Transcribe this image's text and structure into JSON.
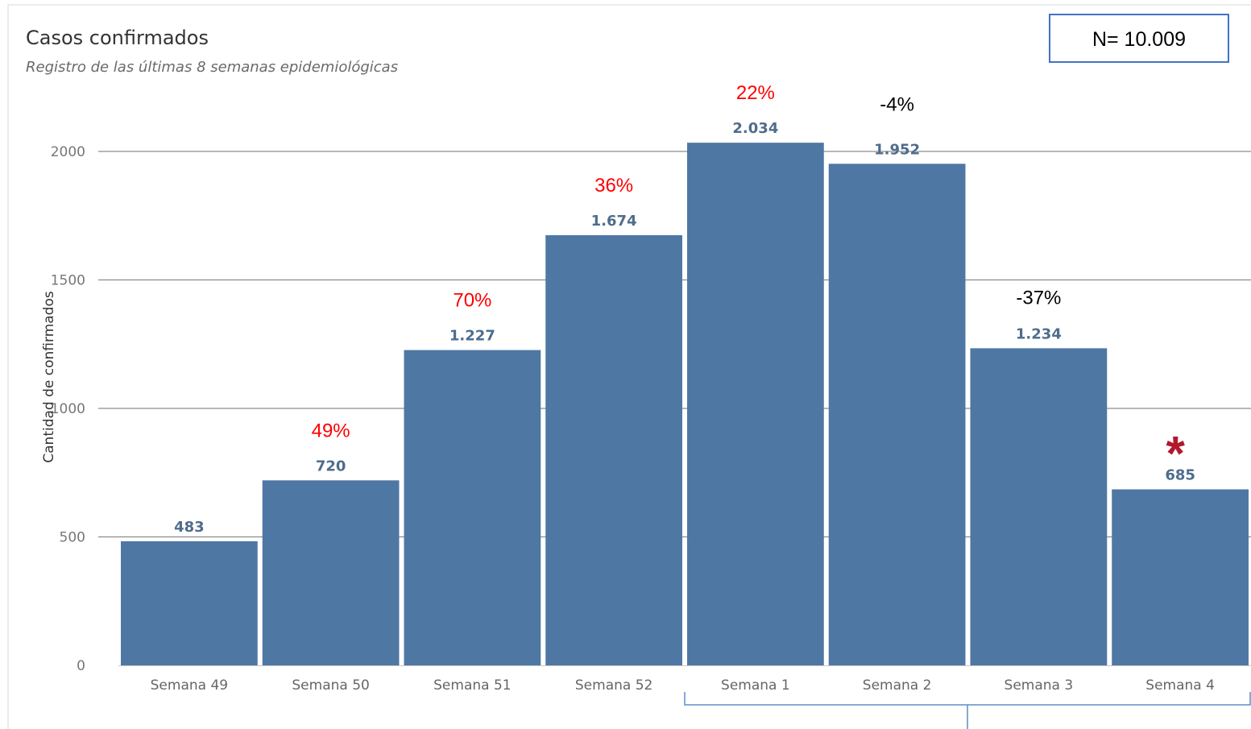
{
  "chart_data": {
    "type": "bar",
    "title": "Casos confirmados",
    "subtitle": "Registro de las últimas 8 semanas epidemiológicas",
    "ylabel": "Cantidad de confirmados",
    "xlabel": "",
    "ylim": [
      0,
      2000
    ],
    "yticks": [
      0,
      500,
      1000,
      1500,
      2000
    ],
    "grid": true,
    "bar_color": "#4e77a4",
    "categories": [
      "Semana 49",
      "Semana 50",
      "Semana 51",
      "Semana 52",
      "Semana 1",
      "Semana 2",
      "Semana 3",
      "Semana 4"
    ],
    "values": [
      483,
      720,
      1227,
      1674,
      2034,
      1952,
      1234,
      685
    ],
    "value_labels": [
      "483",
      "720",
      "1.227",
      "1.674",
      "2.034",
      "1.952",
      "1.234",
      "685"
    ],
    "change_labels": [
      "",
      "49%",
      "70%",
      "36%",
      "22%",
      "-4%",
      "-37%",
      ""
    ],
    "change_colors": [
      "",
      "#ff0000",
      "#ff0000",
      "#ff0000",
      "#ff0000",
      "#000000",
      "#000000",
      ""
    ],
    "total_box": "N= 10.009",
    "asterisk": "*",
    "asterisk_category": "Semana 4",
    "bracket_range": [
      "Semana 1",
      "Semana 4"
    ]
  }
}
